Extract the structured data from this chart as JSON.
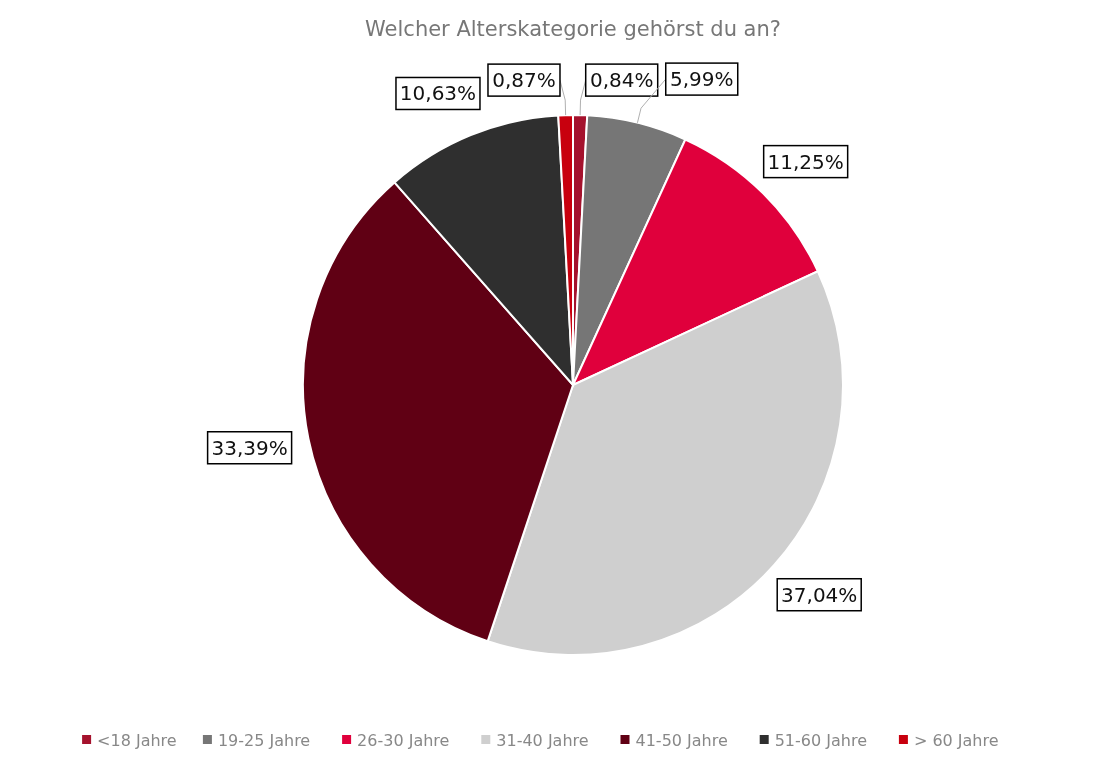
{
  "chart_data": {
    "type": "pie",
    "title": "Welcher Alterskategorie gehörst du an?",
    "categories": [
      "<18 Jahre",
      "19-25 Jahre",
      "26-30 Jahre",
      "31-40 Jahre",
      "41-50 Jahre",
      "51-60 Jahre",
      "> 60 Jahre"
    ],
    "values": [
      0.84,
      5.99,
      11.25,
      37.04,
      33.39,
      10.63,
      0.87
    ],
    "value_labels": [
      "0,84%",
      "5,99%",
      "11,25%",
      "37,04%",
      "33,39%",
      "10,63%",
      "0,87%"
    ],
    "colors": [
      "#a5122d",
      "#767676",
      "#e0003c",
      "#cfcfcf",
      "#600014",
      "#2f2f2f",
      "#c8000e"
    ],
    "legend": "bottom"
  }
}
